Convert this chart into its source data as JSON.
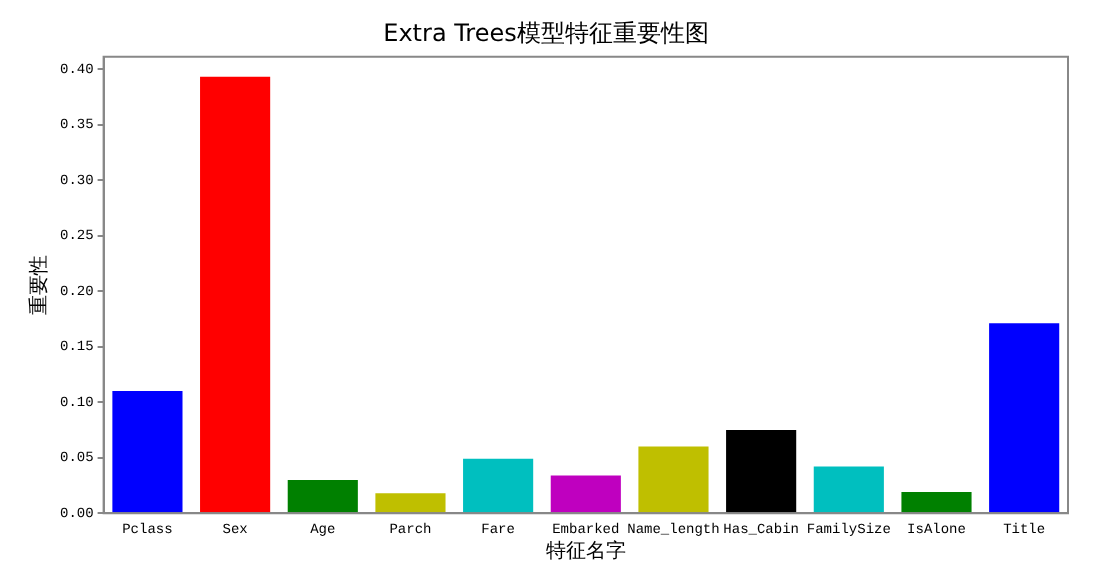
{
  "chart_data": {
    "type": "bar",
    "title": "Extra Trees模型特征重要性图",
    "xlabel": "特征名字",
    "ylabel": "重要性",
    "categories": [
      "Pclass",
      "Sex",
      "Age",
      "Parch",
      "Fare",
      "Embarked",
      "Name_length",
      "Has_Cabin",
      "FamilySize",
      "IsAlone",
      "Title"
    ],
    "values": [
      0.11,
      0.393,
      0.03,
      0.018,
      0.049,
      0.034,
      0.06,
      0.075,
      0.042,
      0.019,
      0.171
    ],
    "colors": [
      "#0000ff",
      "#ff0000",
      "#008000",
      "#bfbf00",
      "#00bfbf",
      "#bf00bf",
      "#bfbf00",
      "#000000",
      "#00bfbf",
      "#008000",
      "#0000ff"
    ],
    "ylim": [
      0,
      0.411
    ],
    "yticks": [
      {
        "value": 0,
        "label": "0.00"
      },
      {
        "value": 0.05,
        "label": "0.05"
      },
      {
        "value": 0.1,
        "label": "0.10"
      },
      {
        "value": 0.15,
        "label": "0.15"
      },
      {
        "value": 0.2,
        "label": "0.20"
      },
      {
        "value": 0.25,
        "label": "0.25"
      },
      {
        "value": 0.3,
        "label": "0.30"
      },
      {
        "value": 0.35,
        "label": "0.35"
      },
      {
        "value": 0.4,
        "label": "0.40"
      }
    ],
    "grid": false,
    "legend": false
  }
}
